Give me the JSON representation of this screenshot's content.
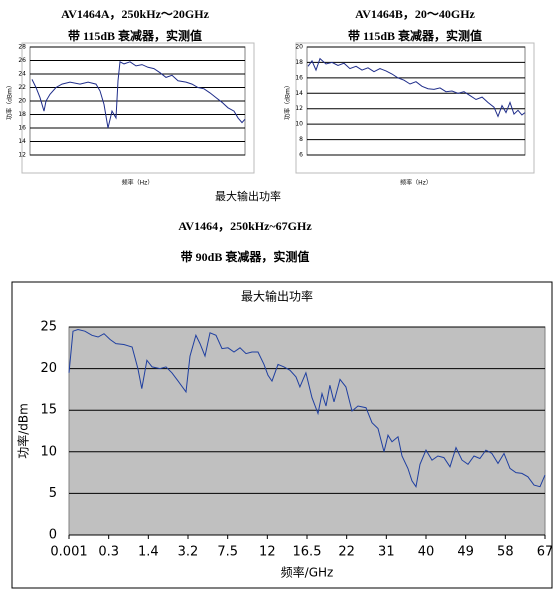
{
  "captions": [
    "最大输出功率",
    "AV1464，250kHz~67GHz",
    "带 90dB 衰减器，实测值"
  ],
  "chart_data": [
    {
      "type": "line",
      "title": "AV1464A，250kHz～20GHz",
      "subtitle": "带 115dB 衰减器，实测值",
      "x_label": "频率（Hz）",
      "y_label": "功率（dBm）",
      "color": "#1f2d8a",
      "grid": true,
      "xlim": [
        0,
        20
      ],
      "ylim": [
        12,
        28
      ],
      "yticks": [
        12,
        14,
        16,
        18,
        20,
        22,
        24,
        26,
        28
      ],
      "x": [
        0.19,
        0.56,
        0.93,
        1.3,
        1.49,
        1.86,
        2.42,
        2.98,
        3.72,
        4.65,
        5.4,
        6.14,
        6.51,
        6.88,
        7.26,
        7.63,
        8.0,
        8.19,
        8.37,
        8.74,
        9.3,
        9.86,
        10.42,
        10.98,
        11.53,
        12.09,
        12.65,
        13.21,
        13.77,
        14.51,
        15.07,
        15.63,
        16.19,
        16.74,
        17.3,
        17.86,
        18.42,
        18.98,
        19.35,
        19.72,
        20.0
      ],
      "values": [
        23.2,
        22.0,
        20.5,
        18.5,
        20.0,
        21.0,
        22.0,
        22.5,
        22.8,
        22.5,
        22.8,
        22.5,
        21.5,
        19.5,
        16.0,
        18.5,
        17.5,
        23.0,
        25.8,
        25.5,
        25.8,
        25.2,
        25.4,
        25.0,
        24.8,
        24.2,
        23.5,
        23.8,
        23.0,
        22.8,
        22.5,
        22.0,
        21.8,
        21.2,
        20.5,
        19.8,
        19.0,
        18.5,
        17.5,
        16.8,
        17.3
      ]
    },
    {
      "type": "line",
      "title": "AV1464B，20～40GHz",
      "subtitle": "带 115dB 衰减器，实测值",
      "x_label": "频率（Hz）",
      "y_label": "功率（dBm）",
      "color": "#1f2d8a",
      "grid": true,
      "xlim": [
        20,
        40
      ],
      "ylim": [
        6,
        20
      ],
      "yticks": [
        6,
        8,
        10,
        12,
        14,
        16,
        18,
        20
      ],
      "x": [
        20.09,
        20.46,
        20.83,
        21.19,
        21.74,
        22.29,
        22.84,
        23.39,
        23.94,
        24.5,
        25.05,
        25.6,
        26.15,
        26.7,
        27.25,
        27.8,
        28.35,
        28.9,
        29.45,
        30.0,
        30.55,
        31.1,
        31.65,
        32.2,
        32.75,
        33.3,
        33.85,
        34.4,
        34.95,
        35.5,
        36.06,
        36.61,
        37.16,
        37.52,
        37.89,
        38.26,
        38.62,
        38.99,
        39.36,
        39.72,
        40.0
      ],
      "values": [
        17.5,
        18.2,
        17.0,
        18.5,
        17.8,
        18.0,
        17.6,
        17.9,
        17.2,
        17.5,
        17.0,
        17.3,
        16.8,
        17.2,
        16.9,
        16.5,
        16.0,
        15.7,
        15.2,
        15.5,
        14.9,
        14.6,
        14.5,
        14.7,
        14.2,
        14.3,
        14.0,
        14.2,
        13.7,
        13.2,
        13.5,
        12.8,
        12.2,
        11.0,
        12.4,
        11.5,
        12.8,
        11.3,
        11.8,
        11.2,
        11.5
      ]
    },
    {
      "type": "line",
      "title": "最大输出功率",
      "x_label": "频率/GHz",
      "y_label": "功率/dBm",
      "color": "#1f3fa0",
      "grid": true,
      "background": "#c0c0c0",
      "xlim": [
        0.001,
        67
      ],
      "xticks": [
        0.001,
        0.3,
        1.4,
        3.2,
        7.5,
        12,
        16.5,
        22,
        31,
        40,
        49,
        58,
        67
      ],
      "ylim": [
        0,
        25
      ],
      "yticks": [
        0,
        5,
        10,
        15,
        20,
        25
      ],
      "x": [
        0.001,
        0.031,
        0.069,
        0.121,
        0.174,
        0.22,
        0.265,
        0.34,
        0.5,
        0.72,
        0.95,
        1.11,
        1.22,
        1.36,
        1.57,
        1.93,
        2.2,
        2.47,
        2.75,
        3.11,
        3.42,
        4.06,
        4.5,
        5.04,
        5.58,
        6.24,
        6.89,
        7.54,
        8.22,
        8.9,
        9.58,
        10.26,
        10.94,
        11.62,
        12.07,
        12.53,
        13.21,
        13.89,
        14.57,
        15.25,
        15.7,
        16.38,
        17.19,
        18.02,
        18.58,
        19.13,
        19.68,
        20.24,
        21.08,
        21.9,
        23.21,
        24.57,
        26.38,
        27.74,
        29.1,
        30.47,
        31.37,
        32.28,
        33.64,
        34.55,
        35.9,
        36.82,
        37.73,
        38.63,
        39.99,
        41.35,
        42.71,
        44.07,
        45.44,
        46.8,
        48.16,
        49.52,
        50.88,
        52.24,
        53.6,
        54.96,
        56.33,
        57.69,
        59.05,
        60.41,
        61.77,
        63.13,
        64.5,
        65.86,
        67
      ],
      "values": [
        19.5,
        24.5,
        24.7,
        24.5,
        24.0,
        23.8,
        24.2,
        23.5,
        23.0,
        22.9,
        22.6,
        20.0,
        17.6,
        21.0,
        20.2,
        20.0,
        20.2,
        19.5,
        18.5,
        17.2,
        21.5,
        24.0,
        23.0,
        21.5,
        24.3,
        24.0,
        22.4,
        22.5,
        22.0,
        22.5,
        21.8,
        22.0,
        22.0,
        20.5,
        19.2,
        18.5,
        20.5,
        20.2,
        19.8,
        19.0,
        17.8,
        19.5,
        16.5,
        14.6,
        17.0,
        15.5,
        18.0,
        16.0,
        18.7,
        17.8,
        14.9,
        15.5,
        15.3,
        13.5,
        12.8,
        10.0,
        12.0,
        11.2,
        11.8,
        9.5,
        8.0,
        6.5,
        5.8,
        8.5,
        10.2,
        9.0,
        9.5,
        9.3,
        8.2,
        10.5,
        9.0,
        8.5,
        9.5,
        9.2,
        10.2,
        9.8,
        8.6,
        9.8,
        8.0,
        7.5,
        7.4,
        7.0,
        6.0,
        5.8,
        7.2
      ]
    }
  ]
}
